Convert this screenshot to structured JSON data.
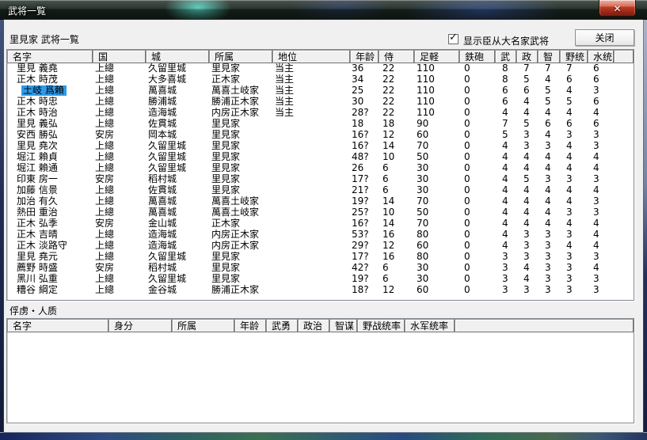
{
  "window": {
    "title": "武将一覧",
    "close_icon": "✕"
  },
  "toolbar": {
    "clan_label": "里見家 武将一覧",
    "checkbox_label": "显示臣从大名家武将",
    "checkbox_checked": true,
    "checkmark_glyph": "✓",
    "close_button_label": "关闭"
  },
  "officers": {
    "columns": [
      "名字",
      "国",
      "城",
      "所属",
      "地位",
      "年龄",
      "侍",
      "足軽",
      "鉄砲",
      "武",
      "政",
      "智",
      "野统",
      "水统",
      ""
    ],
    "selected_index": 2,
    "selected_name": "土岐 爲賴",
    "rows": [
      [
        "里見 義堯",
        "上總",
        "久留里城",
        "里見家",
        "当主",
        "36",
        "22",
        "110",
        "0",
        "8",
        "7",
        "7",
        "7",
        "6"
      ],
      [
        "正木 時茂",
        "上總",
        "大多喜城",
        "正木家",
        "当主",
        "34",
        "22",
        "110",
        "0",
        "8",
        "5",
        "4",
        "6",
        "6"
      ],
      [
        "土岐 爲賴",
        "上總",
        "萬喜城",
        "萬喜土岐家",
        "当主",
        "25",
        "22",
        "110",
        "0",
        "6",
        "6",
        "5",
        "4",
        "3"
      ],
      [
        "正木 時忠",
        "上總",
        "勝浦城",
        "勝浦正木家",
        "当主",
        "30",
        "22",
        "110",
        "0",
        "6",
        "4",
        "5",
        "5",
        "6"
      ],
      [
        "正木 時治",
        "上總",
        "造海城",
        "内房正木家",
        "当主",
        "28?",
        "22",
        "110",
        "0",
        "4",
        "4",
        "4",
        "4",
        "4"
      ],
      [
        "里見 義弘",
        "上總",
        "佐貫城",
        "里見家",
        "",
        "18",
        "18",
        "90",
        "0",
        "7",
        "5",
        "6",
        "6",
        "6"
      ],
      [
        "安西 勝弘",
        "安房",
        "岡本城",
        "里見家",
        "",
        "16?",
        "12",
        "60",
        "0",
        "5",
        "3",
        "4",
        "3",
        "3"
      ],
      [
        "里見 堯次",
        "上總",
        "久留里城",
        "里見家",
        "",
        "16?",
        "14",
        "70",
        "0",
        "4",
        "3",
        "3",
        "4",
        "3"
      ],
      [
        "堀江 賴貞",
        "上總",
        "久留里城",
        "里見家",
        "",
        "48?",
        "10",
        "50",
        "0",
        "4",
        "4",
        "4",
        "4",
        "4"
      ],
      [
        "堀江 賴通",
        "上總",
        "久留里城",
        "里見家",
        "",
        "26",
        "6",
        "30",
        "0",
        "4",
        "4",
        "4",
        "4",
        "4"
      ],
      [
        "印東 房一",
        "安房",
        "稻村城",
        "里見家",
        "",
        "17?",
        "6",
        "30",
        "0",
        "4",
        "5",
        "3",
        "3",
        "3"
      ],
      [
        "加藤 信景",
        "上總",
        "佐貫城",
        "里見家",
        "",
        "21?",
        "6",
        "30",
        "0",
        "4",
        "4",
        "4",
        "4",
        "4"
      ],
      [
        "加治 有久",
        "上總",
        "萬喜城",
        "萬喜土岐家",
        "",
        "19?",
        "14",
        "70",
        "0",
        "4",
        "4",
        "4",
        "4",
        "3"
      ],
      [
        "熱田 重治",
        "上總",
        "萬喜城",
        "萬喜土岐家",
        "",
        "25?",
        "10",
        "50",
        "0",
        "4",
        "4",
        "4",
        "3",
        "3"
      ],
      [
        "正木 弘季",
        "安房",
        "金山城",
        "正木家",
        "",
        "16?",
        "14",
        "70",
        "0",
        "4",
        "4",
        "4",
        "4",
        "4"
      ],
      [
        "正木 吉晴",
        "上總",
        "造海城",
        "内房正木家",
        "",
        "53?",
        "16",
        "80",
        "0",
        "4",
        "3",
        "3",
        "3",
        "4"
      ],
      [
        "正木 淡路守",
        "上總",
        "造海城",
        "内房正木家",
        "",
        "29?",
        "12",
        "60",
        "0",
        "4",
        "3",
        "3",
        "4",
        "4"
      ],
      [
        "里見 堯元",
        "上總",
        "久留里城",
        "里見家",
        "",
        "17?",
        "16",
        "80",
        "0",
        "3",
        "3",
        "3",
        "3",
        "3"
      ],
      [
        "薦野 時盛",
        "安房",
        "稻村城",
        "里見家",
        "",
        "42?",
        "6",
        "30",
        "0",
        "3",
        "4",
        "3",
        "3",
        "4"
      ],
      [
        "黑川 弘重",
        "上總",
        "久留里城",
        "里見家",
        "",
        "19?",
        "6",
        "30",
        "0",
        "3",
        "4",
        "3",
        "3",
        "3"
      ],
      [
        "糟谷 綱定",
        "上總",
        "金谷城",
        "勝浦正木家",
        "",
        "18?",
        "12",
        "60",
        "0",
        "3",
        "3",
        "3",
        "3",
        "3"
      ]
    ]
  },
  "captives": {
    "section_label": "俘虏・人质",
    "columns": [
      "名字",
      "身分",
      "所属",
      "年龄",
      "武勇",
      "政治",
      "智谋",
      "野战统率",
      "水军统率",
      ""
    ],
    "rows": []
  },
  "colors": {
    "selection_blue": "#2f9ae8",
    "close_button_red": "#bc3a27",
    "client_background": "#f0f0f0",
    "list_background": "#ffffff"
  }
}
